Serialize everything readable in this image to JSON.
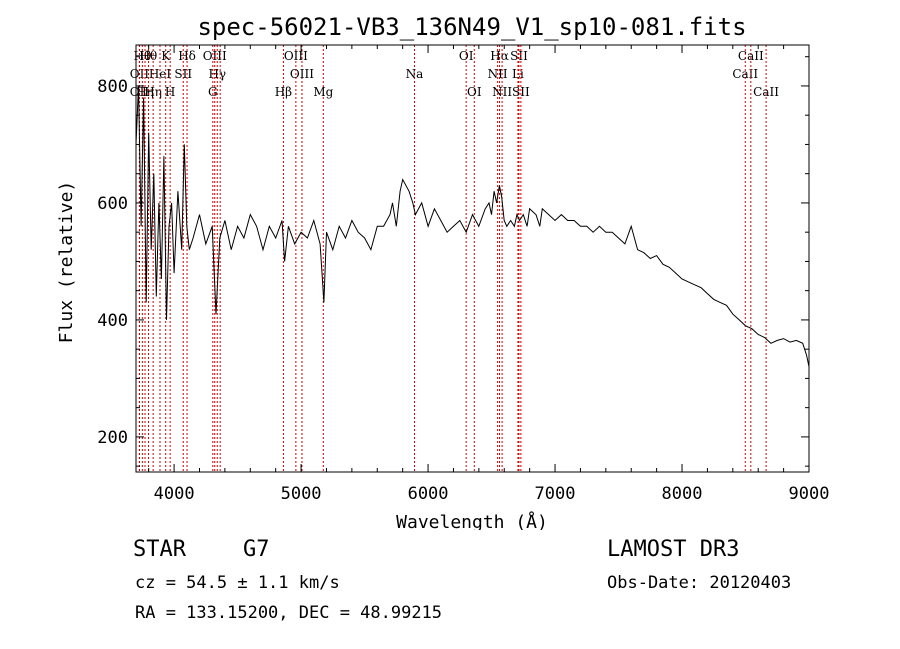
{
  "chart_data": {
    "type": "line",
    "title": "spec-56021-VB3_136N49_V1_sp10-081.fits",
    "xlabel": "Wavelength (Å)",
    "ylabel": "Flux (relative)",
    "xlim": [
      3700,
      9000
    ],
    "ylim": [
      140,
      870
    ],
    "xticks": [
      4000,
      5000,
      6000,
      7000,
      8000,
      9000
    ],
    "yticks": [
      200,
      400,
      600,
      800
    ],
    "line_color": "#000000",
    "marker_color": "#cc0000",
    "spectrum": {
      "x": [
        3700,
        3720,
        3740,
        3760,
        3780,
        3800,
        3820,
        3840,
        3860,
        3880,
        3900,
        3920,
        3940,
        3960,
        3980,
        4000,
        4030,
        4060,
        4080,
        4100,
        4120,
        4150,
        4200,
        4250,
        4300,
        4330,
        4360,
        4400,
        4450,
        4500,
        4550,
        4600,
        4650,
        4700,
        4750,
        4800,
        4850,
        4870,
        4900,
        4950,
        5000,
        5050,
        5100,
        5150,
        5180,
        5200,
        5250,
        5300,
        5350,
        5400,
        5450,
        5500,
        5550,
        5600,
        5650,
        5700,
        5720,
        5750,
        5780,
        5800,
        5850,
        5880,
        5900,
        5950,
        6000,
        6050,
        6100,
        6150,
        6200,
        6250,
        6300,
        6350,
        6400,
        6450,
        6480,
        6500,
        6520,
        6540,
        6562,
        6580,
        6600,
        6620,
        6650,
        6680,
        6700,
        6720,
        6750,
        6780,
        6800,
        6850,
        6880,
        6900,
        6950,
        7000,
        7050,
        7100,
        7150,
        7200,
        7250,
        7300,
        7350,
        7400,
        7450,
        7500,
        7550,
        7600,
        7650,
        7700,
        7750,
        7800,
        7850,
        7900,
        7950,
        8000,
        8050,
        8100,
        8150,
        8200,
        8250,
        8300,
        8350,
        8400,
        8450,
        8500,
        8550,
        8600,
        8650,
        8700,
        8750,
        8800,
        8850,
        8900,
        8950,
        8980,
        9000
      ],
      "y": [
        700,
        800,
        560,
        780,
        430,
        720,
        520,
        650,
        440,
        600,
        470,
        680,
        400,
        560,
        600,
        480,
        620,
        520,
        700,
        560,
        520,
        540,
        580,
        530,
        560,
        410,
        540,
        570,
        520,
        560,
        540,
        580,
        560,
        520,
        560,
        540,
        570,
        500,
        560,
        530,
        550,
        540,
        570,
        530,
        430,
        550,
        520,
        560,
        540,
        570,
        550,
        540,
        520,
        560,
        560,
        580,
        600,
        560,
        620,
        640,
        620,
        600,
        580,
        600,
        560,
        590,
        570,
        550,
        560,
        570,
        550,
        580,
        560,
        590,
        600,
        580,
        620,
        600,
        630,
        610,
        570,
        560,
        570,
        560,
        580,
        570,
        580,
        560,
        590,
        580,
        560,
        590,
        580,
        570,
        580,
        570,
        570,
        560,
        560,
        550,
        560,
        550,
        550,
        540,
        530,
        560,
        520,
        515,
        505,
        510,
        495,
        490,
        480,
        470,
        465,
        460,
        455,
        445,
        435,
        430,
        425,
        410,
        400,
        390,
        385,
        375,
        370,
        360,
        365,
        368,
        362,
        365,
        360,
        340,
        320
      ]
    },
    "lines": [
      {
        "w": 3727,
        "label": "OII",
        "row": 2
      },
      {
        "w": 3727,
        "label": "OII",
        "row": 3
      },
      {
        "w": 3750,
        "label": "Hθ",
        "row": 1
      },
      {
        "w": 3771,
        "label": "Hη",
        "row": 3
      },
      {
        "w": 3798,
        "label": "Hθ",
        "row": 1
      },
      {
        "w": 3835,
        "label": "Hη",
        "row": 3
      },
      {
        "w": 3889,
        "label": "HeI",
        "row": 2
      },
      {
        "w": 3934,
        "label": "K",
        "row": 1
      },
      {
        "w": 3969,
        "label": "H",
        "row": 3
      },
      {
        "w": 4072,
        "label": "SII",
        "row": 2
      },
      {
        "w": 4102,
        "label": "Hδ",
        "row": 1
      },
      {
        "w": 4320,
        "label": "OIII",
        "row": 1
      },
      {
        "w": 4340,
        "label": "Hγ",
        "row": 2
      },
      {
        "w": 4305,
        "label": "G",
        "row": 3
      },
      {
        "w": 4363,
        "label": "",
        "row": 0
      },
      {
        "w": 4861,
        "label": "Hβ",
        "row": 3
      },
      {
        "w": 4959,
        "label": "OIII",
        "row": 1
      },
      {
        "w": 5007,
        "label": "OIII",
        "row": 2
      },
      {
        "w": 5175,
        "label": "Mg",
        "row": 3
      },
      {
        "w": 5893,
        "label": "Na",
        "row": 2
      },
      {
        "w": 6300,
        "label": "OI",
        "row": 1
      },
      {
        "w": 6364,
        "label": "OI",
        "row": 3
      },
      {
        "w": 6548,
        "label": "NII",
        "row": 2
      },
      {
        "w": 6563,
        "label": "Hα",
        "row": 1
      },
      {
        "w": 6583,
        "label": "NII",
        "row": 3
      },
      {
        "w": 6708,
        "label": "Li",
        "row": 2
      },
      {
        "w": 6716,
        "label": "SII",
        "row": 1
      },
      {
        "w": 6731,
        "label": "SII",
        "row": 3
      },
      {
        "w": 8498,
        "label": "CaII",
        "row": 2
      },
      {
        "w": 8542,
        "label": "CaII",
        "row": 1
      },
      {
        "w": 8662,
        "label": "CaII",
        "row": 3
      }
    ]
  },
  "footer": {
    "object_type": "STAR",
    "subclass": "G7",
    "survey": "LAMOST DR3",
    "cz": "cz = 54.5 ± 1.1 km/s",
    "obs_date": "Obs-Date: 20120403",
    "radec": "RA = 133.15200, DEC =  48.99215"
  }
}
